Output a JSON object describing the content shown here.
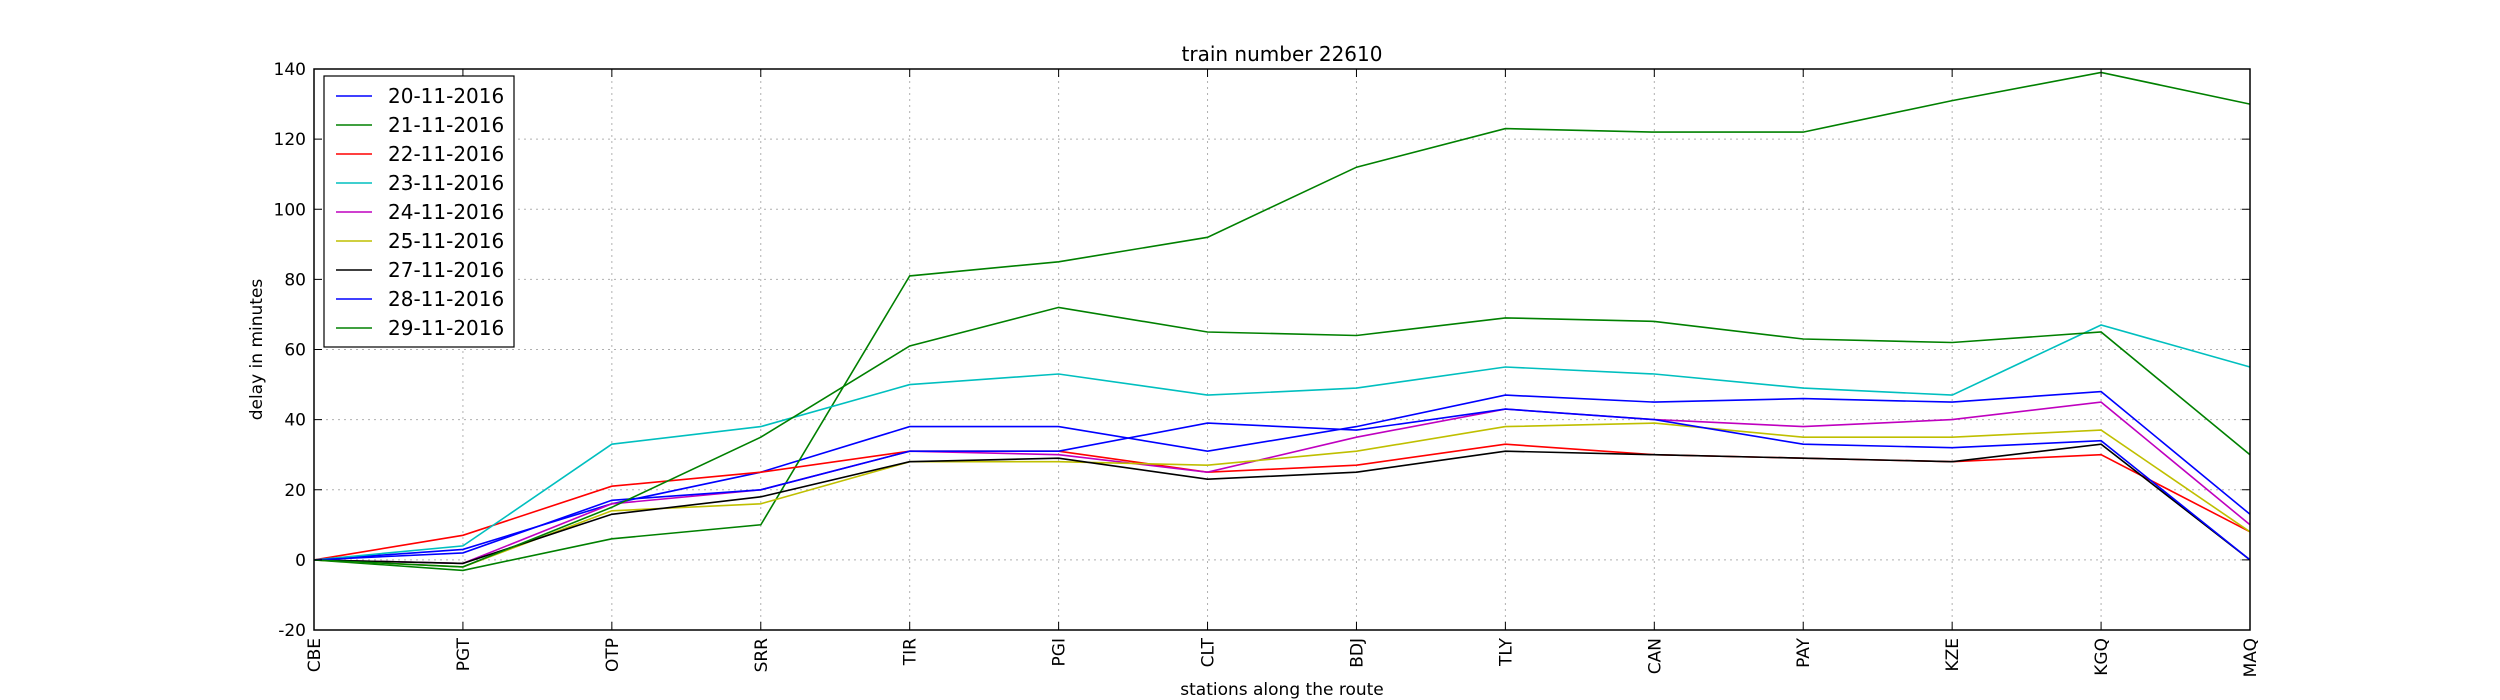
{
  "chart_data": {
    "type": "line",
    "title": "train number 22610",
    "xlabel": "stations along the route",
    "ylabel": "delay in minutes",
    "categories": [
      "CBE",
      "PGT",
      "OTP",
      "SRR",
      "TIR",
      "PGI",
      "CLT",
      "BDJ",
      "TLY",
      "CAN",
      "PAY",
      "KZE",
      "KGQ",
      "MAQ"
    ],
    "ylim": [
      -20,
      140
    ],
    "yticks": [
      -20,
      0,
      20,
      40,
      60,
      80,
      100,
      120,
      140
    ],
    "grid": true,
    "legend_position": "top-left",
    "series": [
      {
        "name": "20-11-2016",
        "color": "#0000ff",
        "values": [
          0,
          3,
          16,
          25,
          38,
          38,
          31,
          38,
          47,
          45,
          46,
          45,
          48,
          13
        ]
      },
      {
        "name": "21-11-2016",
        "color": "#008000",
        "values": [
          0,
          -3,
          6,
          10,
          81,
          85,
          92,
          112,
          123,
          122,
          122,
          131,
          139,
          130
        ]
      },
      {
        "name": "22-11-2016",
        "color": "#ff0000",
        "values": [
          0,
          7,
          21,
          25,
          31,
          31,
          25,
          27,
          33,
          30,
          29,
          28,
          30,
          8
        ]
      },
      {
        "name": "23-11-2016",
        "color": "#00bfbf",
        "values": [
          0,
          4,
          33,
          38,
          50,
          53,
          47,
          49,
          55,
          53,
          49,
          47,
          67,
          55
        ]
      },
      {
        "name": "24-11-2016",
        "color": "#bf00bf",
        "values": [
          0,
          -1,
          16,
          20,
          31,
          30,
          25,
          35,
          43,
          40,
          38,
          40,
          45,
          10
        ]
      },
      {
        "name": "25-11-2016",
        "color": "#bfbf00",
        "values": [
          0,
          -2,
          14,
          16,
          28,
          28,
          27,
          31,
          38,
          39,
          35,
          35,
          37,
          8
        ]
      },
      {
        "name": "27-11-2016",
        "color": "#000000",
        "values": [
          0,
          -1,
          13,
          18,
          28,
          29,
          23,
          25,
          31,
          30,
          29,
          28,
          33,
          0
        ]
      },
      {
        "name": "28-11-2016",
        "color": "#0000ff",
        "values": [
          0,
          2,
          17,
          20,
          31,
          31,
          39,
          37,
          43,
          40,
          33,
          32,
          34,
          0
        ]
      },
      {
        "name": "29-11-2016",
        "color": "#008000",
        "values": [
          0,
          -2,
          15,
          35,
          61,
          72,
          65,
          64,
          69,
          68,
          63,
          62,
          65,
          30
        ]
      }
    ]
  }
}
